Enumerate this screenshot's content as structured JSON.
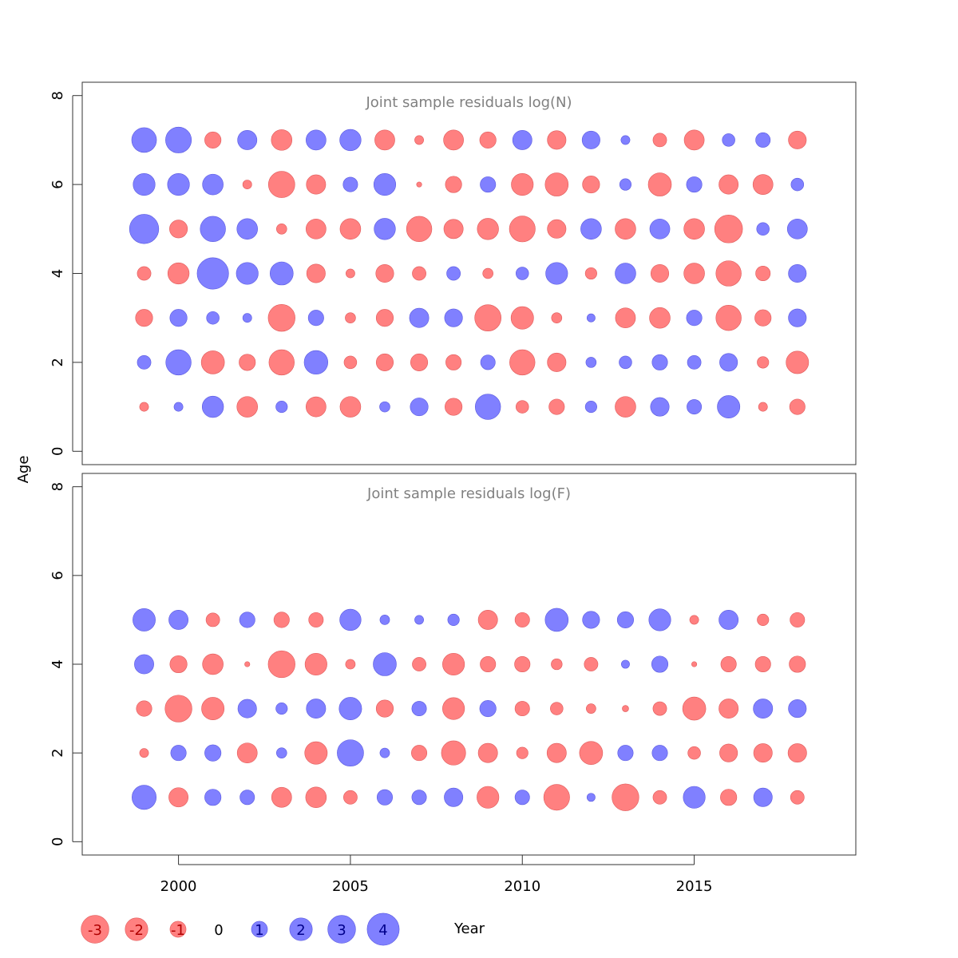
{
  "chart_data": [
    {
      "type": "scatter",
      "title": "Joint sample residuals log(N)",
      "xlabel": "Year",
      "ylabel": "Age",
      "xlim": [
        1997.2,
        2019.7
      ],
      "ylim": [
        -0.3,
        8.3
      ],
      "yticks": [
        0,
        2,
        4,
        6,
        8
      ],
      "grid": false,
      "years": [
        1999,
        2000,
        2001,
        2002,
        2003,
        2004,
        2005,
        2006,
        2007,
        2008,
        2009,
        2010,
        2011,
        2012,
        2013,
        2014,
        2015,
        2016,
        2017,
        2018
      ],
      "ages": [
        1,
        2,
        3,
        4,
        5,
        6,
        7
      ],
      "residuals": [
        [
          -0.3,
          0.3,
          1.7,
          -1.6,
          0.5,
          -1.5,
          -1.6,
          0.4,
          1.2,
          -1.1,
          2.4,
          -0.6,
          -0.9,
          0.5,
          -1.6,
          1.3,
          0.8,
          1.9,
          -0.3,
          -0.9
        ],
        [
          0.7,
          2.4,
          -2.0,
          -1.0,
          -2.4,
          2.1,
          -0.6,
          -1.1,
          -1.1,
          -0.9,
          0.8,
          -2.4,
          -1.3,
          0.4,
          0.6,
          0.9,
          0.7,
          1.2,
          -0.5,
          -1.9
        ],
        [
          -1.1,
          1.1,
          0.6,
          0.3,
          -2.7,
          0.9,
          -0.4,
          -1.1,
          1.4,
          1.2,
          -2.6,
          -1.9,
          -0.4,
          0.25,
          -1.5,
          -1.6,
          0.9,
          -2.4,
          -1.0,
          1.2
        ],
        [
          -0.7,
          -1.7,
          3.7,
          1.8,
          2.0,
          -1.3,
          -0.3,
          -1.2,
          -0.7,
          0.7,
          -0.4,
          0.6,
          1.8,
          -0.5,
          1.6,
          -1.2,
          -1.6,
          -2.4,
          -0.8,
          1.2
        ],
        [
          3.2,
          -1.2,
          2.4,
          1.6,
          -0.4,
          -1.5,
          -1.6,
          1.7,
          -2.4,
          -1.4,
          -1.7,
          -2.5,
          -1.3,
          1.6,
          -1.6,
          1.5,
          -1.6,
          -2.9,
          0.6,
          1.5
        ],
        [
          1.8,
          1.8,
          1.6,
          -0.3,
          -2.6,
          -1.4,
          0.8,
          1.8,
          -0.1,
          -1.0,
          0.9,
          -1.8,
          -2.0,
          -1.1,
          0.5,
          -2.0,
          0.9,
          -1.4,
          -1.5,
          0.6
        ],
        [
          2.3,
          2.5,
          -1.0,
          1.4,
          -1.6,
          1.5,
          1.7,
          -1.5,
          -0.3,
          -1.5,
          -1.0,
          1.4,
          -1.3,
          1.2,
          0.3,
          -0.7,
          -1.5,
          0.6,
          0.8,
          -1.2
        ]
      ]
    },
    {
      "type": "scatter",
      "title": "Joint sample residuals log(F)",
      "xlabel": "Year",
      "ylabel": "Age",
      "xlim": [
        1997.2,
        2019.7
      ],
      "ylim": [
        -0.3,
        8.3
      ],
      "yticks": [
        0,
        2,
        4,
        6,
        8
      ],
      "xticks": [
        2000,
        2005,
        2010,
        2015
      ],
      "grid": false,
      "years": [
        1999,
        2000,
        2001,
        2002,
        2003,
        2004,
        2005,
        2006,
        2007,
        2008,
        2009,
        2010,
        2011,
        2012,
        2013,
        2014,
        2015,
        2016,
        2017,
        2018
      ],
      "ages": [
        1,
        2,
        3,
        4,
        5
      ],
      "residuals": [
        [
          2.2,
          -1.4,
          1.0,
          0.8,
          -1.5,
          -1.6,
          -0.7,
          0.9,
          0.8,
          1.3,
          -1.8,
          0.8,
          -2.5,
          0.25,
          -2.7,
          -0.7,
          1.8,
          -1.0,
          1.3,
          -0.7
        ],
        [
          -0.3,
          0.9,
          1.0,
          -1.5,
          0.4,
          -1.9,
          2.6,
          0.35,
          -0.9,
          -2.2,
          -1.4,
          -0.5,
          -1.4,
          -2.0,
          0.9,
          0.9,
          -0.6,
          -1.2,
          -1.3,
          -1.3
        ],
        [
          -0.9,
          -2.7,
          -1.9,
          1.3,
          0.5,
          1.4,
          1.9,
          -1.1,
          0.8,
          -1.8,
          1.0,
          -0.8,
          -0.6,
          -0.35,
          -0.15,
          -0.7,
          -2.0,
          -1.4,
          1.4,
          1.2
        ],
        [
          1.4,
          -1.1,
          -1.6,
          -0.1,
          -2.7,
          -1.8,
          -0.35,
          2.0,
          -0.7,
          -1.8,
          -0.9,
          -0.9,
          -0.45,
          -0.7,
          0.25,
          1.0,
          -0.1,
          -0.9,
          -0.9,
          -1.0
        ],
        [
          1.9,
          1.4,
          -0.7,
          0.9,
          -0.9,
          -0.8,
          1.7,
          0.35,
          0.3,
          0.5,
          -1.4,
          -0.8,
          2.0,
          1.1,
          1.0,
          1.8,
          -0.3,
          1.4,
          -0.5,
          -0.8
        ]
      ]
    }
  ],
  "legend": {
    "position": "bottom-left",
    "items": [
      {
        "label": "-3",
        "value": -3
      },
      {
        "label": "-2",
        "value": -2
      },
      {
        "label": "-1",
        "value": -1
      },
      {
        "label": "0",
        "value": 0
      },
      {
        "label": "1",
        "value": 1
      },
      {
        "label": "2",
        "value": 2
      },
      {
        "label": "3",
        "value": 3
      },
      {
        "label": "4",
        "value": 4
      }
    ]
  },
  "colors": {
    "negative_fill": "#ff8080",
    "negative_stroke": "#e05a5a",
    "negative_text": "#b00000",
    "positive_fill": "#8080ff",
    "positive_stroke": "#5a5ae0",
    "positive_text": "#00008b",
    "title": "#808080"
  }
}
